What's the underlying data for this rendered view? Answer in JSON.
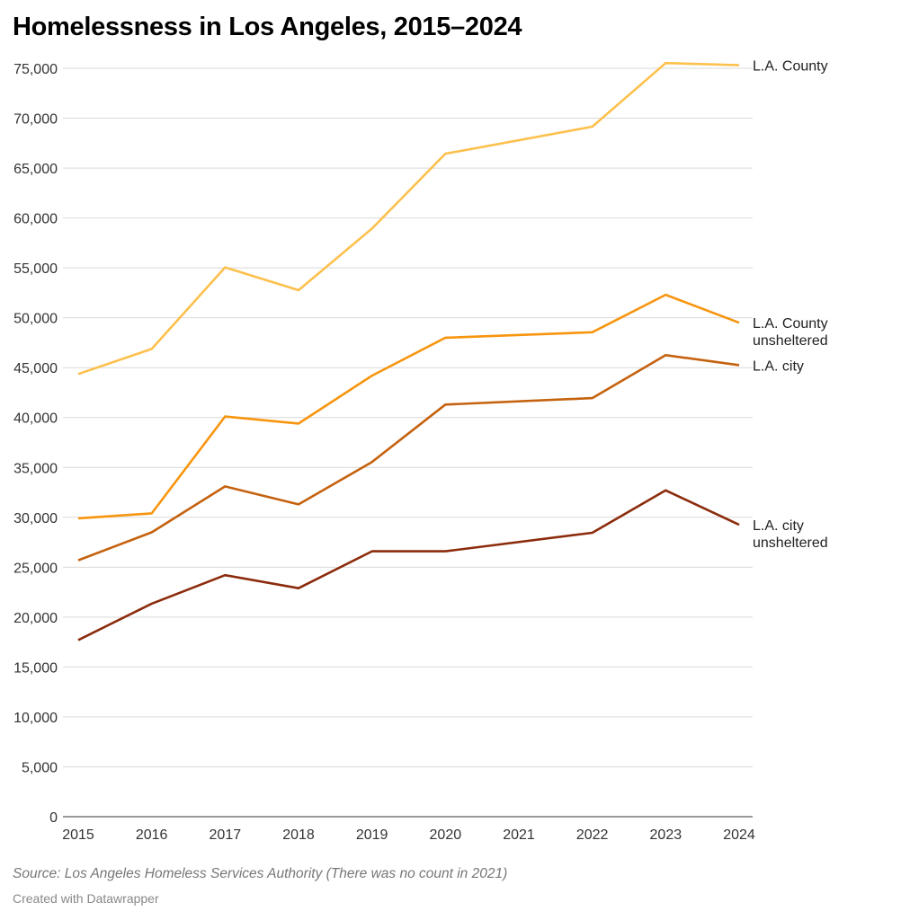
{
  "chart_data": {
    "type": "line",
    "title": "Homelessness in Los Angeles, 2015–2024",
    "xlabel": "",
    "ylabel": "",
    "x": [
      "2015",
      "2016",
      "2017",
      "2018",
      "2019",
      "2020",
      "2021",
      "2022",
      "2023",
      "2024"
    ],
    "ylim": [
      0,
      75000
    ],
    "yticks": [
      0,
      5000,
      10000,
      15000,
      20000,
      25000,
      30000,
      35000,
      40000,
      45000,
      50000,
      55000,
      60000,
      65000,
      70000,
      75000
    ],
    "ytick_labels": [
      "0",
      "5,000",
      "10,000",
      "15,000",
      "20,000",
      "25,000",
      "30,000",
      "35,000",
      "40,000",
      "45,000",
      "50,000",
      "55,000",
      "60,000",
      "65,000",
      "70,000",
      "75,000"
    ],
    "grid": true,
    "legend": "direct labels at right end of lines",
    "series": [
      {
        "name": "L.A.  County",
        "label_lines": [
          "L.A.  County"
        ],
        "color": "#fdc04c",
        "values": [
          44359,
          46874,
          55048,
          52765,
          58936,
          66436,
          null,
          69144,
          75518,
          75312
        ]
      },
      {
        "name": "L.A. County unsheltered",
        "label_lines": [
          "L.A. County",
          "unsheltered"
        ],
        "color": "#f7950f",
        "values": [
          29900,
          30400,
          40100,
          39400,
          44200,
          48000,
          null,
          48550,
          52300,
          49500
        ]
      },
      {
        "name": "L.A. city",
        "label_lines": [
          "L.A. city"
        ],
        "color": "#c5620f",
        "values": [
          25700,
          28500,
          33100,
          31300,
          35550,
          41300,
          null,
          41950,
          46250,
          45250
        ]
      },
      {
        "name": "L.A. city unsheltered",
        "label_lines": [
          "L.A. city",
          "unsheltered"
        ],
        "color": "#8b2b0c",
        "values": [
          17700,
          21350,
          24200,
          22900,
          26600,
          26600,
          null,
          28450,
          32700,
          29250
        ]
      }
    ]
  },
  "source": "Source: Los Angeles Homeless Services Authority (There was no count in 2021)",
  "credit": "Created with Datawrapper"
}
